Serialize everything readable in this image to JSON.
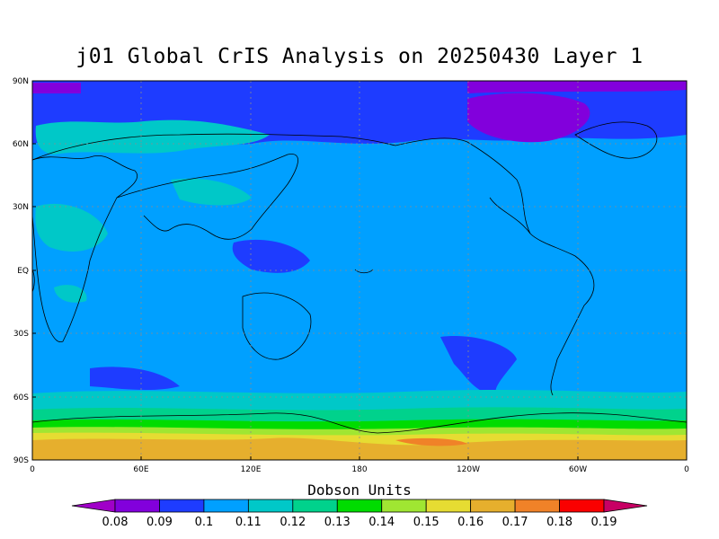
{
  "title": "j01 Global CrIS Analysis on 20250430 Layer 1",
  "colorbar_title": "Dobson Units",
  "lat_ticks": [
    "90N",
    "60N",
    "30N",
    "EQ",
    "30S",
    "60S",
    "90S"
  ],
  "lon_ticks": [
    "0",
    "60E",
    "120E",
    "180",
    "120W",
    "60W",
    "0"
  ],
  "colorbar": {
    "labels": [
      "0.08",
      "0.09",
      "0.1",
      "0.11",
      "0.12",
      "0.13",
      "0.14",
      "0.15",
      "0.16",
      "0.17",
      "0.18",
      "0.19"
    ],
    "colors": [
      "#a000c8",
      "#8200dc",
      "#1e3cff",
      "#00a0ff",
      "#00c8c8",
      "#00d28c",
      "#00dc00",
      "#a0e632",
      "#e6dc32",
      "#e6af2d",
      "#f08228",
      "#fa0000",
      "#c80064"
    ]
  },
  "chart_data": {
    "type": "heatmap",
    "title": "j01 Global CrIS Analysis on 20250430 Layer 1",
    "units": "Dobson Units",
    "x_axis": {
      "range": [
        0,
        360
      ],
      "ticks": [
        "0",
        "60E",
        "120E",
        "180",
        "120W",
        "60W",
        "0"
      ]
    },
    "y_axis": {
      "range": [
        -90,
        90
      ],
      "ticks": [
        "90N",
        "60N",
        "30N",
        "EQ",
        "30S",
        "60S",
        "90S"
      ]
    },
    "grid": true,
    "levels": [
      0.08,
      0.09,
      0.1,
      0.11,
      0.12,
      0.13,
      0.14,
      0.15,
      0.16,
      0.17,
      0.18,
      0.19
    ],
    "latitude_bands": [
      {
        "lat": [
          75,
          90
        ],
        "value": 0.09
      },
      {
        "lat": [
          60,
          75
        ],
        "value": 0.095
      },
      {
        "lat": [
          -60,
          60
        ],
        "value": 0.105
      },
      {
        "lat": [
          -70,
          -60
        ],
        "value": 0.115
      },
      {
        "lat": [
          -75,
          -70
        ],
        "value": 0.13
      },
      {
        "lat": [
          -78,
          -75
        ],
        "value": 0.145
      },
      {
        "lat": [
          -90,
          -78
        ],
        "value": 0.165
      }
    ]
  }
}
